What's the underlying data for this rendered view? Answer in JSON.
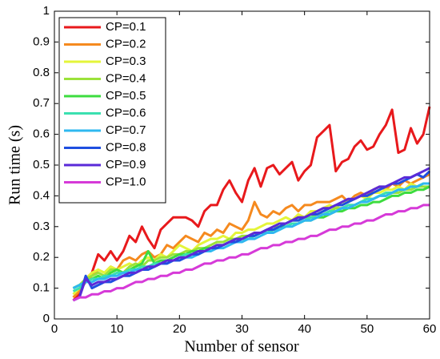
{
  "chart_data": {
    "type": "line",
    "xlabel": "Number of sensor",
    "ylabel": "Run time (s)",
    "x": [
      3,
      4,
      5,
      6,
      7,
      8,
      9,
      10,
      11,
      12,
      13,
      14,
      15,
      16,
      17,
      18,
      19,
      20,
      21,
      22,
      23,
      24,
      25,
      26,
      27,
      28,
      29,
      30,
      31,
      32,
      33,
      34,
      35,
      36,
      37,
      38,
      39,
      40,
      41,
      42,
      43,
      44,
      45,
      46,
      47,
      48,
      49,
      50,
      51,
      52,
      53,
      54,
      55,
      56,
      57,
      58,
      59,
      60
    ],
    "xlim": [
      0,
      60
    ],
    "xticks": [
      0,
      10,
      20,
      30,
      40,
      50,
      60
    ],
    "ylim": [
      0,
      1
    ],
    "yticks": [
      0,
      0.1,
      0.2,
      0.3,
      0.4,
      0.5,
      0.6,
      0.7,
      0.8,
      0.9,
      1
    ],
    "grid": false,
    "legend": "upper left",
    "series": [
      {
        "name": "CP=0.1",
        "color": "#e8191c",
        "values": [
          0.06,
          0.08,
          0.13,
          0.15,
          0.21,
          0.19,
          0.22,
          0.19,
          0.22,
          0.27,
          0.25,
          0.3,
          0.26,
          0.23,
          0.29,
          0.31,
          0.33,
          0.33,
          0.33,
          0.32,
          0.3,
          0.35,
          0.37,
          0.37,
          0.42,
          0.45,
          0.41,
          0.38,
          0.45,
          0.49,
          0.43,
          0.49,
          0.5,
          0.47,
          0.49,
          0.51,
          0.45,
          0.48,
          0.5,
          0.59,
          0.61,
          0.63,
          0.48,
          0.51,
          0.52,
          0.56,
          0.58,
          0.55,
          0.56,
          0.6,
          0.63,
          0.68,
          0.54,
          0.55,
          0.62,
          0.57,
          0.6,
          0.69
        ]
      },
      {
        "name": "CP=0.2",
        "color": "#f58a1f",
        "values": [
          0.07,
          0.09,
          0.12,
          0.14,
          0.16,
          0.15,
          0.17,
          0.16,
          0.19,
          0.2,
          0.19,
          0.21,
          0.22,
          0.2,
          0.21,
          0.24,
          0.23,
          0.25,
          0.27,
          0.26,
          0.25,
          0.28,
          0.27,
          0.29,
          0.28,
          0.31,
          0.3,
          0.29,
          0.32,
          0.38,
          0.34,
          0.33,
          0.35,
          0.34,
          0.36,
          0.37,
          0.35,
          0.37,
          0.37,
          0.38,
          0.38,
          0.38,
          0.39,
          0.4,
          0.38,
          0.4,
          0.41,
          0.4,
          0.42,
          0.43,
          0.42,
          0.44,
          0.43,
          0.45,
          0.44,
          0.45,
          0.46,
          0.47
        ]
      },
      {
        "name": "CP=0.3",
        "color": "#e4f53a",
        "values": [
          0.08,
          0.1,
          0.13,
          0.15,
          0.16,
          0.15,
          0.17,
          0.16,
          0.17,
          0.18,
          0.17,
          0.19,
          0.2,
          0.19,
          0.21,
          0.2,
          0.22,
          0.24,
          0.23,
          0.22,
          0.24,
          0.25,
          0.26,
          0.26,
          0.27,
          0.26,
          0.28,
          0.28,
          0.29,
          0.29,
          0.3,
          0.31,
          0.31,
          0.32,
          0.33,
          0.32,
          0.34,
          0.33,
          0.35,
          0.35,
          0.36,
          0.37,
          0.36,
          0.38,
          0.38,
          0.39,
          0.4,
          0.39,
          0.41,
          0.41,
          0.42,
          0.42,
          0.43,
          0.42,
          0.44,
          0.43,
          0.44,
          0.44
        ]
      },
      {
        "name": "CP=0.4",
        "color": "#9be23a",
        "values": [
          0.1,
          0.11,
          0.13,
          0.14,
          0.15,
          0.14,
          0.16,
          0.16,
          0.15,
          0.17,
          0.18,
          0.17,
          0.19,
          0.19,
          0.2,
          0.2,
          0.21,
          0.21,
          0.22,
          0.22,
          0.23,
          0.23,
          0.24,
          0.25,
          0.25,
          0.26,
          0.26,
          0.27,
          0.27,
          0.28,
          0.28,
          0.29,
          0.3,
          0.3,
          0.31,
          0.32,
          0.32,
          0.33,
          0.33,
          0.34,
          0.34,
          0.35,
          0.36,
          0.36,
          0.37,
          0.37,
          0.38,
          0.39,
          0.39,
          0.4,
          0.4,
          0.41,
          0.41,
          0.42,
          0.42,
          0.43,
          0.43,
          0.43
        ]
      },
      {
        "name": "CP=0.5",
        "color": "#3ddc3f",
        "values": [
          0.1,
          0.11,
          0.12,
          0.13,
          0.14,
          0.13,
          0.15,
          0.16,
          0.15,
          0.16,
          0.17,
          0.18,
          0.22,
          0.18,
          0.19,
          0.19,
          0.2,
          0.21,
          0.21,
          0.22,
          0.22,
          0.23,
          0.23,
          0.24,
          0.24,
          0.25,
          0.26,
          0.26,
          0.27,
          0.27,
          0.28,
          0.28,
          0.29,
          0.3,
          0.3,
          0.31,
          0.31,
          0.32,
          0.32,
          0.33,
          0.33,
          0.34,
          0.35,
          0.35,
          0.36,
          0.36,
          0.37,
          0.37,
          0.38,
          0.38,
          0.39,
          0.4,
          0.4,
          0.41,
          0.41,
          0.42,
          0.42,
          0.43
        ]
      },
      {
        "name": "CP=0.6",
        "color": "#3be0b0",
        "values": [
          0.09,
          0.1,
          0.12,
          0.13,
          0.13,
          0.14,
          0.14,
          0.15,
          0.15,
          0.16,
          0.16,
          0.17,
          0.17,
          0.18,
          0.18,
          0.19,
          0.19,
          0.2,
          0.21,
          0.21,
          0.22,
          0.22,
          0.23,
          0.23,
          0.24,
          0.25,
          0.25,
          0.26,
          0.26,
          0.27,
          0.28,
          0.28,
          0.29,
          0.29,
          0.3,
          0.31,
          0.31,
          0.32,
          0.33,
          0.33,
          0.34,
          0.35,
          0.35,
          0.36,
          0.37,
          0.37,
          0.38,
          0.39,
          0.39,
          0.4,
          0.41,
          0.41,
          0.42,
          0.42,
          0.43,
          0.43,
          0.44,
          0.44
        ]
      },
      {
        "name": "CP=0.7",
        "color": "#2fb8f0",
        "values": [
          0.1,
          0.11,
          0.12,
          0.12,
          0.13,
          0.13,
          0.14,
          0.14,
          0.15,
          0.15,
          0.16,
          0.16,
          0.17,
          0.17,
          0.18,
          0.18,
          0.19,
          0.19,
          0.2,
          0.2,
          0.21,
          0.22,
          0.22,
          0.23,
          0.23,
          0.24,
          0.25,
          0.25,
          0.26,
          0.26,
          0.27,
          0.28,
          0.28,
          0.29,
          0.3,
          0.3,
          0.31,
          0.32,
          0.32,
          0.33,
          0.34,
          0.34,
          0.35,
          0.36,
          0.36,
          0.37,
          0.38,
          0.38,
          0.39,
          0.4,
          0.4,
          0.41,
          0.42,
          0.42,
          0.43,
          0.43,
          0.44,
          0.44
        ]
      },
      {
        "name": "CP=0.8",
        "color": "#1f4fe0",
        "values": [
          0.06,
          0.07,
          0.14,
          0.1,
          0.11,
          0.12,
          0.12,
          0.13,
          0.14,
          0.14,
          0.15,
          0.16,
          0.16,
          0.17,
          0.18,
          0.18,
          0.19,
          0.19,
          0.2,
          0.21,
          0.21,
          0.22,
          0.23,
          0.23,
          0.24,
          0.25,
          0.25,
          0.26,
          0.27,
          0.27,
          0.28,
          0.29,
          0.29,
          0.3,
          0.31,
          0.32,
          0.32,
          0.33,
          0.34,
          0.34,
          0.35,
          0.36,
          0.37,
          0.37,
          0.38,
          0.39,
          0.4,
          0.4,
          0.41,
          0.42,
          0.43,
          0.44,
          0.44,
          0.45,
          0.46,
          0.47,
          0.46,
          0.48
        ]
      },
      {
        "name": "CP=0.9",
        "color": "#5a2ad8",
        "values": [
          0.06,
          0.07,
          0.13,
          0.11,
          0.12,
          0.12,
          0.13,
          0.13,
          0.14,
          0.15,
          0.15,
          0.16,
          0.17,
          0.17,
          0.18,
          0.19,
          0.19,
          0.2,
          0.2,
          0.21,
          0.22,
          0.22,
          0.23,
          0.24,
          0.24,
          0.25,
          0.26,
          0.26,
          0.27,
          0.28,
          0.28,
          0.29,
          0.3,
          0.31,
          0.31,
          0.32,
          0.33,
          0.33,
          0.34,
          0.35,
          0.36,
          0.36,
          0.37,
          0.38,
          0.39,
          0.39,
          0.4,
          0.41,
          0.42,
          0.43,
          0.43,
          0.44,
          0.45,
          0.46,
          0.46,
          0.47,
          0.48,
          0.49
        ]
      },
      {
        "name": "CP=1.0",
        "color": "#d63ad8",
        "values": [
          0.06,
          0.07,
          0.07,
          0.08,
          0.08,
          0.09,
          0.09,
          0.1,
          0.1,
          0.11,
          0.12,
          0.12,
          0.13,
          0.13,
          0.14,
          0.14,
          0.15,
          0.15,
          0.16,
          0.16,
          0.17,
          0.18,
          0.18,
          0.19,
          0.19,
          0.2,
          0.2,
          0.21,
          0.21,
          0.22,
          0.23,
          0.23,
          0.24,
          0.24,
          0.25,
          0.25,
          0.26,
          0.26,
          0.27,
          0.27,
          0.28,
          0.29,
          0.29,
          0.3,
          0.3,
          0.31,
          0.31,
          0.32,
          0.32,
          0.33,
          0.34,
          0.34,
          0.35,
          0.35,
          0.36,
          0.36,
          0.37,
          0.37
        ]
      }
    ]
  }
}
